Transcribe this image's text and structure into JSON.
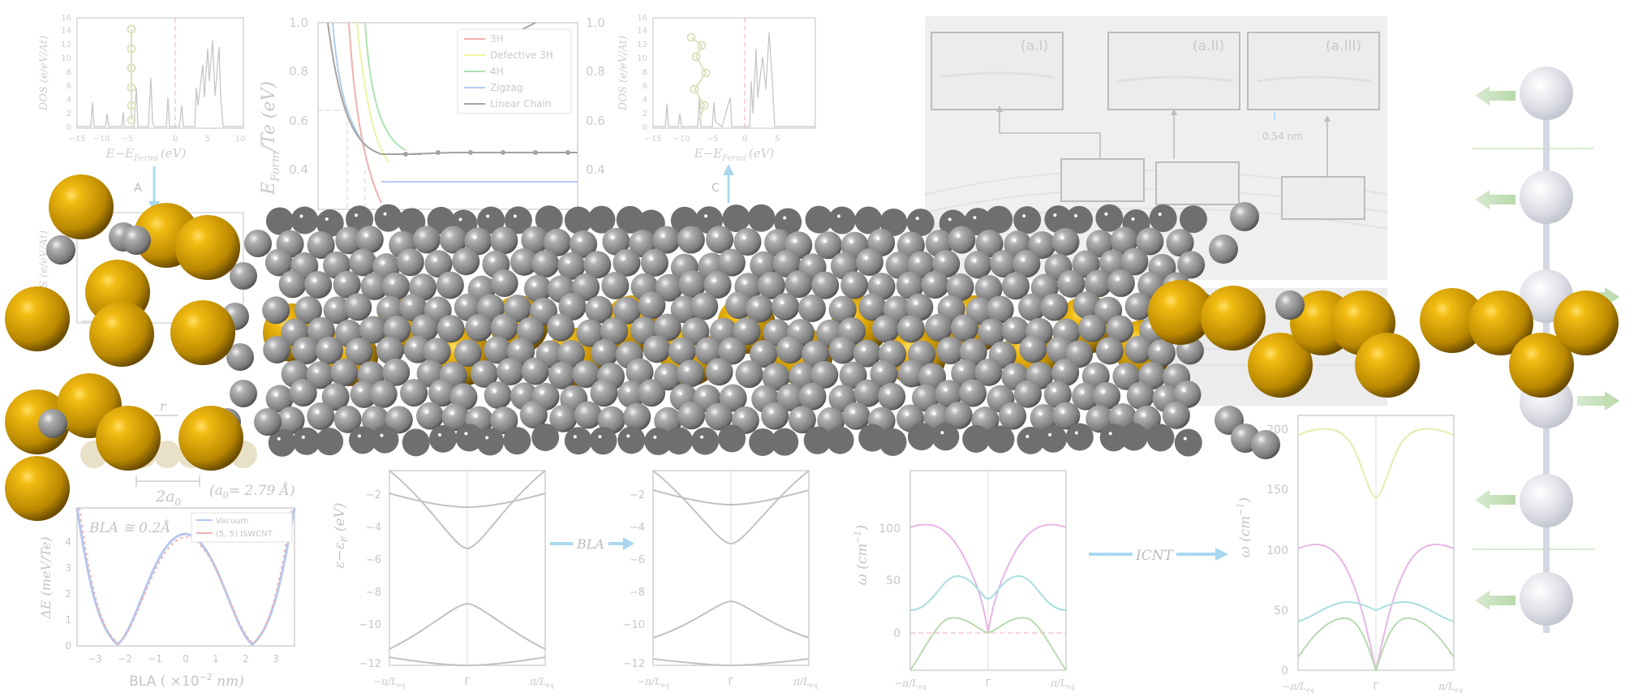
{
  "figure": {
    "dos_a": {
      "ylabel": "DOS (e/eV/At)",
      "xlabel": "E−E",
      "xlabel_sub": "Fermi",
      "xlabel_unit": "(eV)",
      "xticks": [
        "−15",
        "−10",
        "−5",
        "0",
        "5",
        "10"
      ],
      "yticks": [
        "0",
        "2",
        "4",
        "6",
        "8",
        "10",
        "12",
        "14",
        "16"
      ],
      "arrow_label": "A"
    },
    "dos_c": {
      "ylabel": "DOS (e/eV/At)",
      "xlabel": "E−E",
      "xlabel_sub": "Fermi",
      "xlabel_unit": "(eV)",
      "xticks": [
        "−15",
        "−10",
        "−5",
        "0",
        "5"
      ],
      "yticks": [
        "0",
        "2",
        "4",
        "6",
        "8",
        "10",
        "12",
        "14",
        "16"
      ],
      "arrow_label": "C"
    },
    "dos_b": {
      "ylabel": "DOS (e/eV/At)"
    },
    "formation": {
      "ylabel": "E",
      "ylabel_sub": "Form",
      "ylabel_unit": "/Te (eV)",
      "yticks": [
        "1.0",
        "0.8",
        "0.6",
        "0.4"
      ],
      "yticks_right": [
        "1.0",
        "0.8",
        "0.6",
        "0.4"
      ],
      "legend": [
        "3H",
        "Defective 3H",
        "4H",
        "Zigzag",
        "Linear Chain"
      ],
      "colors": [
        "#f2a6a6",
        "#eef29a",
        "#a6e0a6",
        "#a8c8ef",
        "#9a9a9a"
      ]
    },
    "tem": {
      "labels": [
        "(a.I)",
        "(a.II)",
        "(a.III)"
      ],
      "scale": "0.54 nm"
    },
    "chain_schematic": {
      "r_label": "r",
      "a0_label": "2a",
      "a0_value": "(a",
      "a0_value_rest": "= 2.79 Å)"
    },
    "bla_energy": {
      "title": "BLA ≅ 0.2Å",
      "ylabel": "ΔE (meV/Te)",
      "xlabel": "BLA ( ×10",
      "xlabel_rest": " nm)",
      "xlabel_exp": "−2",
      "xticks": [
        "−3",
        "−2",
        "−1",
        "0",
        "1",
        "2",
        "3"
      ],
      "yticks": [
        "0",
        "1",
        "2",
        "3",
        "4"
      ],
      "legend": [
        "Vacuum",
        "(5, 5) ISWCNT"
      ]
    },
    "bands_1": {
      "ylabel": "ε−ε",
      "ylabel_sub": "F",
      "ylabel_unit": " (eV)",
      "yticks": [
        "−2",
        "−4",
        "−6",
        "−8",
        "−10",
        "−12"
      ],
      "xticks": [
        "−π/L",
        "Γ",
        "π/L"
      ],
      "xtick_sub": "eq"
    },
    "bla_arrow": "BLA",
    "bands_2": {
      "yticks": [
        "−2",
        "−4",
        "−6",
        "−8",
        "−10",
        "−12"
      ],
      "xticks": [
        "−π/L",
        "Γ",
        "π/L"
      ],
      "xtick_sub": "eq"
    },
    "phonon_1": {
      "ylabel": "ω (cm",
      "ylabel_rest": ")",
      "ylabel_exp": "−1",
      "yticks": [
        "100",
        "50",
        "0"
      ],
      "xticks": [
        "−π/L",
        "Γ",
        "π/L"
      ],
      "xtick_sub": "eq"
    },
    "icnt_arrow": "ICNT",
    "phonon_2": {
      "ylabel": "ω (cm",
      "ylabel_rest": ")",
      "ylabel_exp": "−1",
      "yticks": [
        "200",
        "150",
        "100",
        "50",
        "0"
      ],
      "xticks": [
        "−π/L",
        "Γ",
        "π/L"
      ],
      "xtick_sub": "eq"
    },
    "colors": {
      "te_atom": "#c99a06",
      "carbon_atom": "#8e8e8e",
      "faded_line": "#c4c4c4",
      "faded_text": "#bdbdbd",
      "arrow_blue": "#a9d8ee"
    }
  }
}
